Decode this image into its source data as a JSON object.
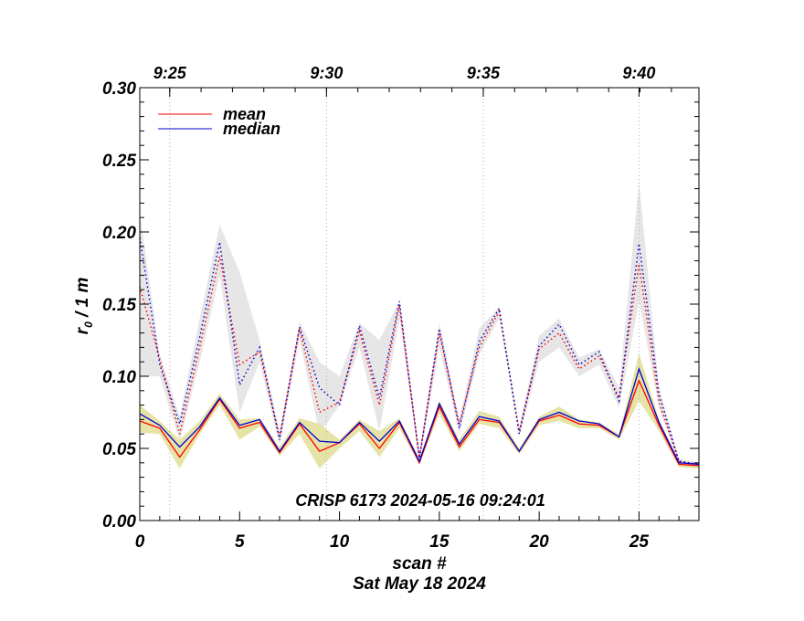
{
  "chart_data": {
    "type": "line",
    "title": "CRISP 6173 2024-05-16 09:24:01",
    "xlabel": "scan #",
    "xlabel2": "Sat May 18 2024",
    "ylabel_main": "r",
    "ylabel_sub": "0",
    "ylabel_rest": " / 1 m",
    "xlim": [
      0,
      28
    ],
    "ylim": [
      0.0,
      0.3
    ],
    "x_ticks": [
      0,
      5,
      10,
      15,
      20,
      25
    ],
    "x_tick_labels": [
      "0",
      "5",
      "10",
      "15",
      "20",
      "25"
    ],
    "y_ticks": [
      0.0,
      0.05,
      0.1,
      0.15,
      0.2,
      0.25,
      0.3
    ],
    "y_tick_labels": [
      "0.00",
      "0.05",
      "0.10",
      "0.15",
      "0.20",
      "0.25",
      "0.30"
    ],
    "top_axis": {
      "tick_positions": [
        1.5,
        9.35,
        17.2,
        25.0
      ],
      "labels": [
        "9:25",
        "9:30",
        "9:35",
        "9:40"
      ]
    },
    "legend": {
      "position": "top-left",
      "entries": [
        "mean",
        "median"
      ]
    },
    "colors": {
      "mean": "#ff0000",
      "median": "#0000cc",
      "upper_band": "#e6e6e6",
      "lower_band": "#e6e3a6",
      "grid": "#b0b0b0"
    },
    "x": [
      0,
      1,
      2,
      3,
      4,
      5,
      6,
      7,
      8,
      9,
      10,
      11,
      12,
      13,
      14,
      15,
      16,
      17,
      18,
      19,
      20,
      21,
      22,
      23,
      24,
      25,
      26,
      27,
      28
    ],
    "series": [
      {
        "name": "mean (upper)",
        "style": "dotted",
        "color": "#ff0000",
        "values": [
          0.162,
          0.112,
          0.06,
          0.12,
          0.183,
          0.108,
          0.117,
          0.058,
          0.133,
          0.075,
          0.082,
          0.131,
          0.08,
          0.149,
          0.044,
          0.13,
          0.067,
          0.12,
          0.145,
          0.062,
          0.119,
          0.13,
          0.105,
          0.114,
          0.085,
          0.178,
          0.082,
          0.041,
          0.039
        ]
      },
      {
        "name": "median (upper)",
        "style": "dotted",
        "color": "#0000cc",
        "values": [
          0.196,
          0.108,
          0.067,
          0.127,
          0.193,
          0.094,
          0.12,
          0.056,
          0.134,
          0.092,
          0.08,
          0.135,
          0.085,
          0.152,
          0.043,
          0.133,
          0.064,
          0.124,
          0.147,
          0.06,
          0.121,
          0.136,
          0.108,
          0.117,
          0.083,
          0.192,
          0.088,
          0.041,
          0.039
        ]
      },
      {
        "name": "mean (lower)",
        "style": "solid",
        "color": "#ff0000",
        "values": [
          0.069,
          0.064,
          0.044,
          0.063,
          0.084,
          0.064,
          0.068,
          0.047,
          0.067,
          0.048,
          0.054,
          0.067,
          0.05,
          0.068,
          0.04,
          0.079,
          0.051,
          0.07,
          0.068,
          0.048,
          0.069,
          0.073,
          0.067,
          0.066,
          0.058,
          0.097,
          0.066,
          0.039,
          0.038
        ]
      },
      {
        "name": "median (lower)",
        "style": "solid",
        "color": "#0000cc",
        "values": [
          0.074,
          0.066,
          0.051,
          0.065,
          0.085,
          0.066,
          0.07,
          0.048,
          0.068,
          0.055,
          0.054,
          0.068,
          0.055,
          0.069,
          0.041,
          0.081,
          0.053,
          0.072,
          0.069,
          0.048,
          0.07,
          0.075,
          0.069,
          0.067,
          0.058,
          0.105,
          0.068,
          0.04,
          0.039
        ]
      }
    ],
    "bands": [
      {
        "name": "upper spread",
        "color": "#e6e6e6",
        "upper": [
          0.213,
          0.115,
          0.072,
          0.14,
          0.205,
          0.172,
          0.125,
          0.062,
          0.138,
          0.11,
          0.1,
          0.137,
          0.125,
          0.152,
          0.046,
          0.137,
          0.07,
          0.133,
          0.148,
          0.065,
          0.128,
          0.14,
          0.113,
          0.119,
          0.092,
          0.235,
          0.092,
          0.043,
          0.04
        ],
        "lower": [
          0.1,
          0.1,
          0.055,
          0.11,
          0.17,
          0.075,
          0.11,
          0.052,
          0.125,
          0.06,
          0.08,
          0.12,
          0.062,
          0.14,
          0.04,
          0.12,
          0.06,
          0.115,
          0.14,
          0.058,
          0.11,
          0.12,
          0.1,
          0.108,
          0.078,
          0.152,
          0.078,
          0.039,
          0.037
        ]
      },
      {
        "name": "lower spread",
        "color": "#e6e3a6",
        "upper": [
          0.08,
          0.069,
          0.056,
          0.069,
          0.088,
          0.07,
          0.071,
          0.051,
          0.071,
          0.067,
          0.056,
          0.07,
          0.062,
          0.071,
          0.043,
          0.083,
          0.056,
          0.076,
          0.072,
          0.05,
          0.072,
          0.079,
          0.07,
          0.068,
          0.06,
          0.116,
          0.07,
          0.041,
          0.039
        ],
        "lower": [
          0.061,
          0.06,
          0.036,
          0.06,
          0.08,
          0.056,
          0.065,
          0.045,
          0.06,
          0.036,
          0.05,
          0.062,
          0.044,
          0.064,
          0.039,
          0.074,
          0.048,
          0.067,
          0.064,
          0.046,
          0.066,
          0.069,
          0.064,
          0.064,
          0.056,
          0.083,
          0.062,
          0.037,
          0.036
        ]
      }
    ]
  }
}
